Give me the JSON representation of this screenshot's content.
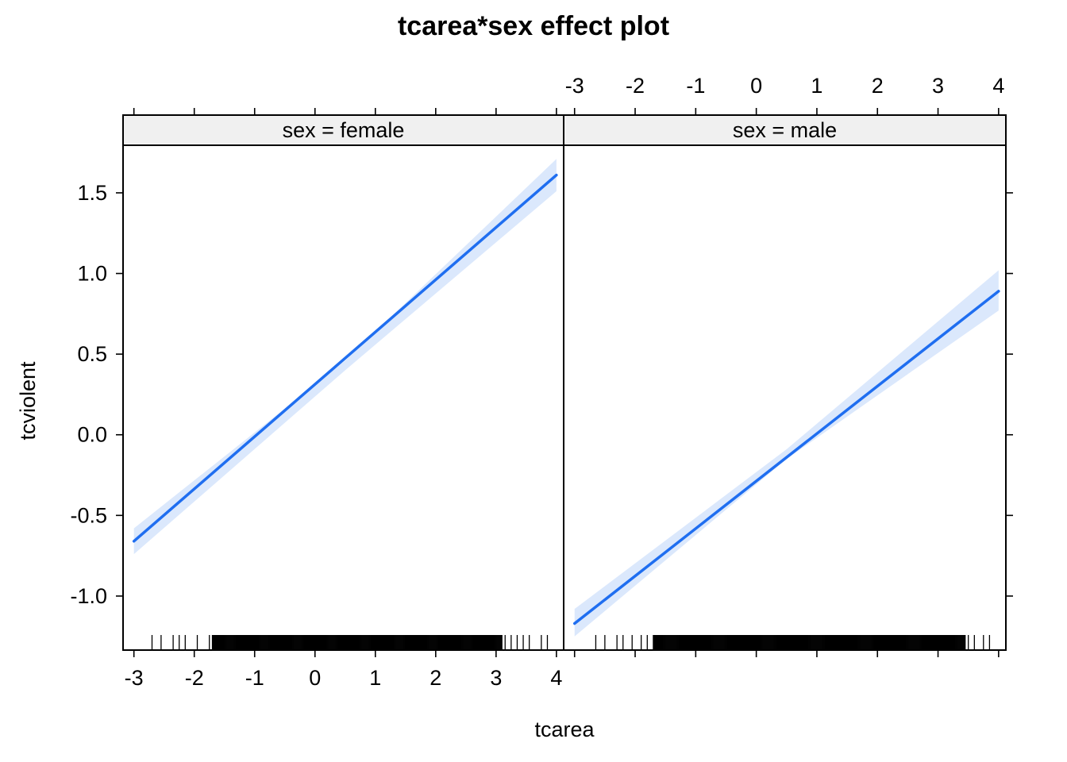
{
  "chart_data": {
    "type": "line",
    "title": "tcarea*sex effect plot",
    "xlabel": "tcarea",
    "ylabel": "tcviolent",
    "xlim": [
      -3.18,
      4.12
    ],
    "ylim": [
      -1.335,
      1.795
    ],
    "x_ticks": [
      -3,
      -2,
      -1,
      0,
      1,
      2,
      3,
      4
    ],
    "x_tick_labels": [
      "-3",
      "-2",
      "-1",
      "0",
      "1",
      "2",
      "3",
      "4"
    ],
    "y_ticks": [
      -1.0,
      -0.5,
      0.0,
      0.5,
      1.0,
      1.5
    ],
    "y_tick_labels": [
      "-1.0",
      "-0.5",
      "0.0",
      "0.5",
      "1.0",
      "1.5"
    ],
    "colors": {
      "line": "#1f6ef0",
      "band": "#dbe8fc",
      "strip": "#f0f0f0"
    },
    "panels": [
      {
        "strip": "sex = female",
        "line": {
          "x": [
            -3,
            4
          ],
          "y": [
            -0.66,
            1.61
          ]
        },
        "band": {
          "x": [
            -3,
            0.5,
            4
          ],
          "lower": [
            -0.74,
            0.4,
            1.51
          ],
          "upper": [
            -0.58,
            0.46,
            1.71
          ]
        },
        "rug": {
          "sparse_left": [
            -2.7,
            -2.55,
            -2.35,
            -2.25,
            -2.15,
            -1.95,
            -1.75
          ],
          "dense_from": -1.7,
          "dense_to": 3.1,
          "sparse_right": [
            3.15,
            3.25,
            3.35,
            3.45,
            3.55,
            3.75,
            3.85
          ]
        }
      },
      {
        "strip": "sex = male",
        "line": {
          "x": [
            -3,
            4
          ],
          "y": [
            -1.17,
            0.89
          ]
        },
        "band": {
          "x": [
            -3,
            0.5,
            4
          ],
          "lower": [
            -1.25,
            -0.15,
            0.77
          ],
          "upper": [
            -1.08,
            -0.09,
            1.02
          ]
        },
        "rug": {
          "sparse_left": [
            -2.65,
            -2.5,
            -2.3,
            -2.2,
            -2.05,
            -1.9,
            -1.8
          ],
          "dense_from": -1.7,
          "dense_to": 3.45,
          "sparse_right": [
            3.5,
            3.6,
            3.75,
            3.85,
            4.1
          ]
        }
      }
    ]
  }
}
